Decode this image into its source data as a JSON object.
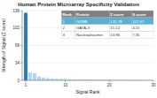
{
  "chart_data": {
    "type": "bar",
    "title": "Human Protein Microarray Specificity Validation",
    "x_label": "Signal Rank",
    "y_label": "Strength of Signal (Z score)",
    "x": [
      1,
      2,
      3,
      4,
      5,
      6,
      7,
      8,
      9,
      10,
      11,
      12,
      13,
      14,
      15,
      16,
      17,
      18,
      19,
      20,
      21,
      22,
      23,
      24,
      25,
      26,
      27,
      28,
      29,
      30
    ],
    "values": [
      131.78,
      15.12,
      13.96,
      7.5,
      5.5,
      4.2,
      3.5,
      3.0,
      2.8,
      2.5,
      2.2,
      2.0,
      1.9,
      1.8,
      1.7,
      1.6,
      1.5,
      1.4,
      1.3,
      1.2,
      1.1,
      1.0,
      0.9,
      0.8,
      0.7,
      0.6,
      0.5,
      0.4,
      0.3,
      0.2
    ],
    "colors": [
      "#2980b9",
      "#aed6f0",
      "#aed6f0",
      "#aed6f0",
      "#aed6f0",
      "#aed6f0",
      "#aed6f0",
      "#aed6f0",
      "#aed6f0",
      "#aed6f0",
      "#aed6f0",
      "#aed6f0",
      "#aed6f0",
      "#aed6f0",
      "#aed6f0",
      "#aed6f0",
      "#aed6f0",
      "#aed6f0",
      "#aed6f0",
      "#aed6f0",
      "#aed6f0",
      "#aed6f0",
      "#aed6f0",
      "#aed6f0",
      "#aed6f0",
      "#aed6f0",
      "#aed6f0",
      "#aed6f0",
      "#aed6f0",
      "#aed6f0"
    ],
    "xlim": [
      0.2,
      30
    ],
    "xticks": [
      1,
      10,
      20,
      30
    ],
    "ylim": [
      0,
      136
    ],
    "yticks": [
      0,
      34,
      68,
      102,
      136
    ],
    "table": {
      "headers": [
        "Rank",
        "Protein",
        "Z score",
        "S score"
      ],
      "rows": [
        [
          "1",
          "GZMB",
          "131.78",
          "122.67"
        ],
        [
          "2",
          "GATA-3",
          "15.12",
          "4.15"
        ],
        [
          "3",
          "Nucleophosmin",
          "13.96",
          "7.35"
        ]
      ],
      "header_color": "#808080",
      "highlight_color": "#5aafd4"
    }
  }
}
